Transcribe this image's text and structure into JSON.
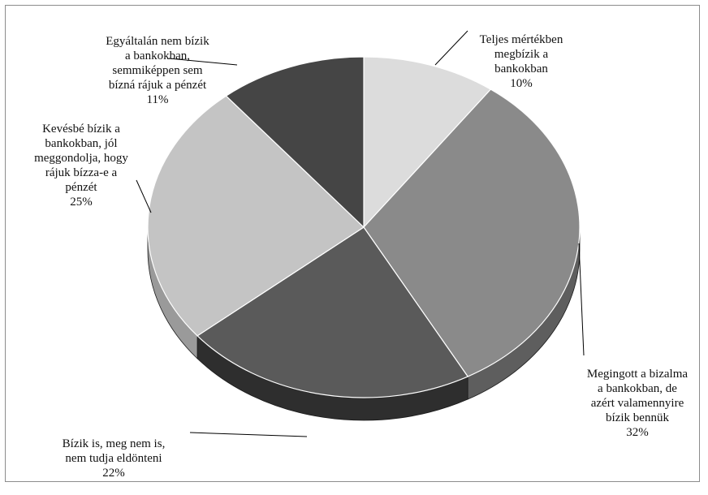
{
  "chart_data": {
    "type": "pie",
    "title": "",
    "slices": [
      {
        "label": "Teljes mértékben\nmegbízik a\nbankokban",
        "value": 10,
        "display": "10%",
        "color": "#dcdcdc",
        "side": "#b4b4b4"
      },
      {
        "label": "Megingott a bizalma\na bankokban, de\nazért valamennyire\nbízik bennük",
        "value": 32,
        "display": "32%",
        "color": "#8a8a8a",
        "side": "#5e5e5e"
      },
      {
        "label": "Bízik is, meg nem is,\nnem tudja eldönteni",
        "value": 22,
        "display": "22%",
        "color": "#5a5a5a",
        "side": "#2e2e2e"
      },
      {
        "label": "Kevésbé bízik a\nbankokban, jól\nmeggondolja, hogy\nrájuk bízza-e a\npénzét",
        "value": 25,
        "display": "25%",
        "color": "#c4c4c4",
        "side": "#9a9a9a"
      },
      {
        "label": "Egyáltalán nem bízik\na bankokban,\nsemmiképpen sem\nbízná rájuk a pénzét",
        "value": 11,
        "display": "11%",
        "color": "#454545",
        "side": "#252525"
      }
    ],
    "legend": "none",
    "style": "3d-pie"
  }
}
